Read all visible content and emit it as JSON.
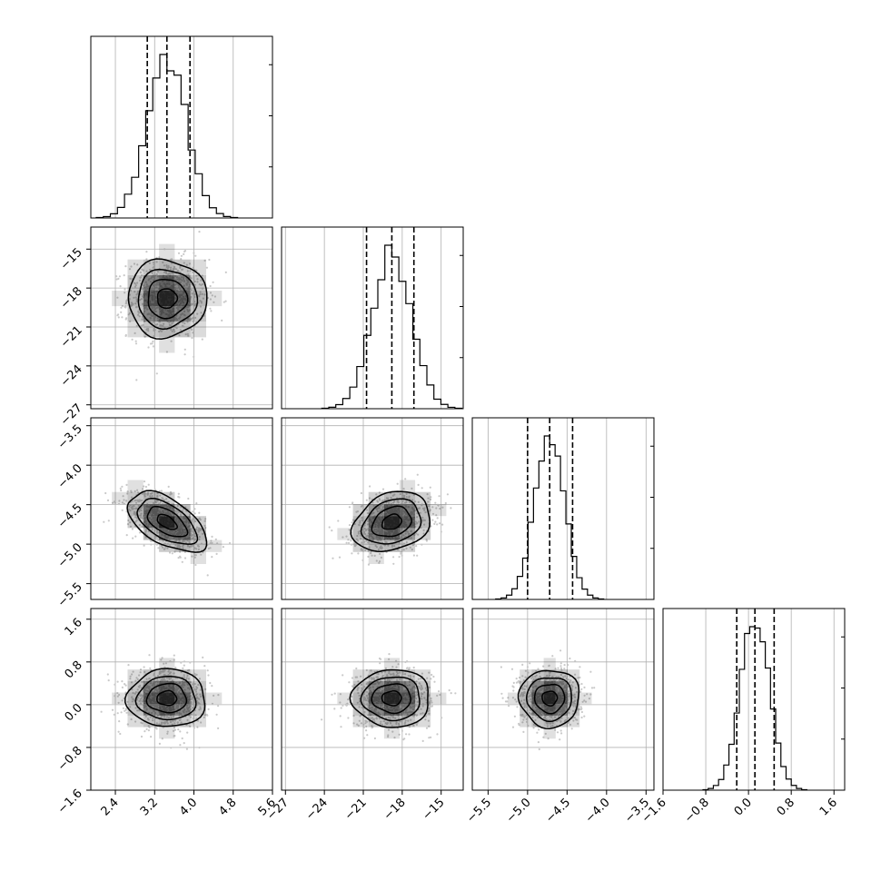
{
  "chart_data": {
    "type": "corner",
    "grid": true,
    "colors": {
      "line": "#000000",
      "grid": "#b0b0b0",
      "points": "#c9c9c9",
      "density": "#000000"
    },
    "parameters": [
      {
        "center": 3.45,
        "sigma": 0.4,
        "quantiles": [
          3.05,
          3.45,
          3.92
        ],
        "range": [
          1.9,
          5.6
        ],
        "ticks": [
          2.4,
          3.2,
          4.0,
          4.8,
          5.6
        ],
        "tick_labels": [
          "2.4",
          "3.2",
          "4.0",
          "4.8",
          "5.6"
        ]
      },
      {
        "center": -18.8,
        "sigma": 1.5,
        "quantiles": [
          -20.75,
          -18.8,
          -17.1
        ],
        "range": [
          -27.3,
          -13.3
        ],
        "ticks": [
          -27,
          -24,
          -21,
          -18,
          -15
        ],
        "tick_labels": [
          "−27",
          "−24",
          "−21",
          "−18",
          "−15"
        ]
      },
      {
        "center": -4.72,
        "sigma": 0.19,
        "quantiles": [
          -5.0,
          -4.72,
          -4.43
        ],
        "range": [
          -5.7,
          -3.4
        ],
        "ticks": [
          -5.5,
          -5.0,
          -4.5,
          -4.0,
          -3.5
        ],
        "tick_labels": [
          "−5.5",
          "−5.0",
          "−4.5",
          "−4.0",
          "−3.5"
        ]
      },
      {
        "center": 0.12,
        "sigma": 0.27,
        "quantiles": [
          -0.22,
          0.12,
          0.48
        ],
        "range": [
          -1.6,
          1.8
        ],
        "ticks": [
          -1.6,
          -0.8,
          0.0,
          0.8,
          1.6
        ],
        "tick_labels": [
          "−1.6",
          "−0.8",
          "0.0",
          "0.8",
          "1.6"
        ]
      }
    ],
    "correlations": [
      {
        "pair": [
          0,
          1
        ],
        "rho": 0.0
      },
      {
        "pair": [
          0,
          2
        ],
        "rho": -0.55
      },
      {
        "pair": [
          0,
          3
        ],
        "rho": 0.0
      },
      {
        "pair": [
          1,
          2
        ],
        "rho": 0.25
      },
      {
        "pair": [
          1,
          3
        ],
        "rho": 0.0
      },
      {
        "pair": [
          2,
          3
        ],
        "rho": 0.0
      }
    ],
    "histogram_bins": 20,
    "contour_sigma_levels": [
      0.5,
      1.0,
      1.5,
      2.0
    ]
  }
}
